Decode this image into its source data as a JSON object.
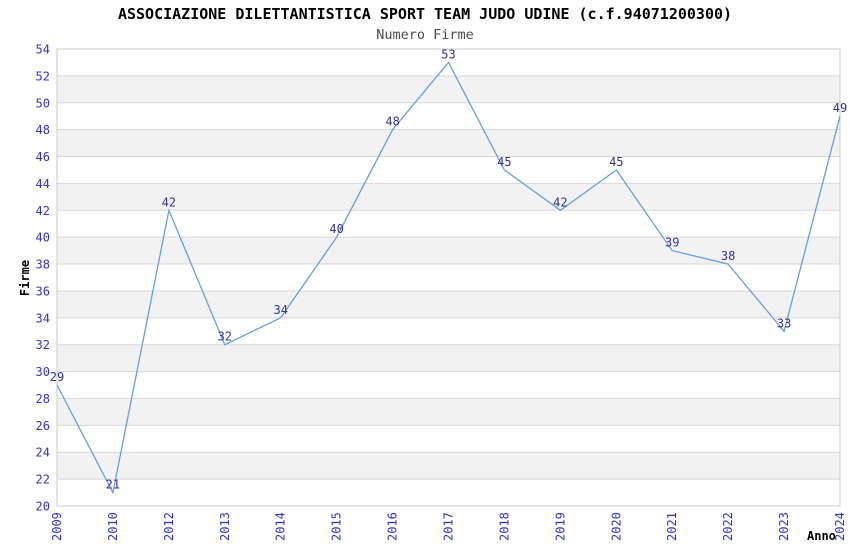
{
  "header": {
    "title": "ASSOCIAZIONE DILETTANTISTICA SPORT TEAM JUDO UDINE (c.f.94071200300)",
    "subtitle": "Numero Firme"
  },
  "chart_data": {
    "type": "line",
    "title": "ASSOCIAZIONE DILETTANTISTICA SPORT TEAM JUDO UDINE (c.f.94071200300)",
    "subtitle": "Numero Firme",
    "xlabel": "Anno",
    "ylabel": "Firme",
    "categories": [
      "2009",
      "2010",
      "2012",
      "2013",
      "2014",
      "2015",
      "2016",
      "2017",
      "2018",
      "2019",
      "2020",
      "2021",
      "2022",
      "2023",
      "2024"
    ],
    "values": [
      29,
      21,
      42,
      32,
      34,
      40,
      48,
      53,
      45,
      42,
      45,
      39,
      38,
      33,
      49
    ],
    "ylim": [
      20,
      54
    ],
    "ytick_step": 2,
    "grid": true,
    "band_rows": "alternating every 2 units, gray between 22-24,26-28,30-32,34-36,38-40,42-44,46-48,50-52",
    "legend": "none",
    "colors": {
      "line": "#64a0e0",
      "tick_label": "#3333cc",
      "data_label": "#333399",
      "band": "#f2f2f2",
      "grid": "#d8d8d8",
      "border": "#c9c9c9",
      "title": "#000000",
      "subtitle": "#4d4d4d",
      "axis_label": "#000000",
      "background": "#ffffff"
    }
  }
}
